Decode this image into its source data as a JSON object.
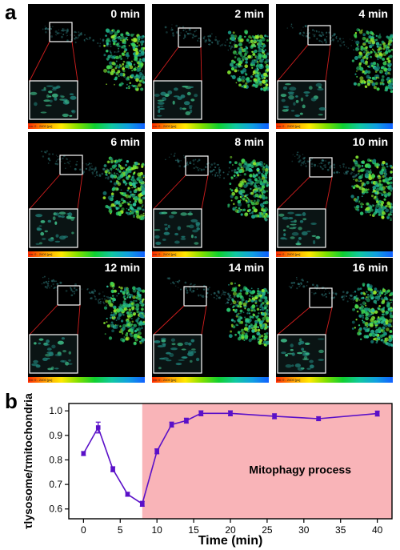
{
  "figure": {
    "panel_a_label": "a",
    "panel_b_label": "b",
    "colorbar_text": "τm: 0 - 2400 [ps]",
    "frames": [
      {
        "label": "0 min"
      },
      {
        "label": "2 min"
      },
      {
        "label": "4 min"
      },
      {
        "label": "6 min"
      },
      {
        "label": "8 min"
      },
      {
        "label": "10 min"
      },
      {
        "label": "12 min"
      },
      {
        "label": "14 min"
      },
      {
        "label": "16 min"
      }
    ]
  },
  "chart_data": {
    "type": "line",
    "xlabel": "Time (min)",
    "ylabel": "τlysosome/τmitochondria",
    "xlim": [
      -2,
      42
    ],
    "ylim": [
      0.56,
      1.03
    ],
    "xticks": [
      0,
      5,
      10,
      15,
      20,
      25,
      30,
      35,
      40
    ],
    "yticks": [
      0.6,
      0.7,
      0.8,
      0.9,
      1.0
    ],
    "ytick_labels": [
      "0.6",
      "0.7",
      "0.8",
      "0.9",
      "1.0"
    ],
    "series": [
      {
        "x": [
          0,
          2,
          4,
          6,
          8,
          10,
          12,
          14,
          16,
          20,
          26,
          32,
          40
        ],
        "y": [
          0.826,
          0.932,
          0.762,
          0.66,
          0.621,
          0.835,
          0.944,
          0.96,
          0.99,
          0.99,
          0.978,
          0.968,
          0.989
        ],
        "err": [
          0.008,
          0.022,
          0.01,
          0.008,
          0.01,
          0.01,
          0.01,
          0.01,
          0.01,
          0.01,
          0.01,
          0.008,
          0.01
        ],
        "color": "#5a10c8"
      }
    ],
    "shaded_region": {
      "x_start": 8,
      "x_end": 42,
      "color": "#f9b4b8",
      "label": "Mitophagy process"
    }
  }
}
